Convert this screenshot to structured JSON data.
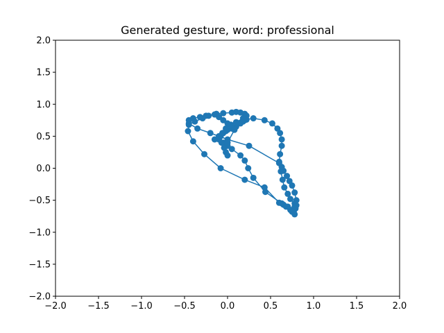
{
  "chart_data": {
    "type": "line",
    "title": "Generated gesture, word: professional",
    "xlabel": "",
    "ylabel": "",
    "xlim": [
      -2.0,
      2.0
    ],
    "ylim": [
      -2.0,
      2.0
    ],
    "xticks": [
      "−2.0",
      "−1.5",
      "−1.0",
      "−0.5",
      "0.0",
      "0.5",
      "1.0",
      "1.5",
      "2.0"
    ],
    "yticks": [
      "−2.0",
      "−1.5",
      "−1.0",
      "−0.5",
      "0.0",
      "0.5",
      "1.0",
      "1.5",
      "2.0"
    ],
    "grid": false,
    "color": "#1f77b4",
    "marker": "o",
    "series": [
      {
        "x": [
          0.0,
          -0.05,
          -0.1,
          -0.08,
          -0.05,
          -0.02,
          0.0,
          0.05,
          0.1,
          0.15,
          0.18,
          0.2,
          0.22,
          0.3,
          0.43,
          0.52,
          0.58,
          0.61,
          0.63,
          0.63,
          0.61,
          0.6,
          0.62,
          0.64,
          0.66,
          0.7,
          0.73,
          0.78,
          0.8,
          0.79,
          0.77,
          0.73,
          0.7,
          0.65,
          0.6,
          0.43,
          0.2,
          -0.08,
          -0.27,
          -0.4,
          -0.46,
          -0.45,
          -0.38,
          -0.29,
          -0.22,
          -0.13,
          -0.05,
          0.05,
          0.1,
          0.15,
          0.2,
          0.22,
          0.18,
          0.1,
          0.04,
          -0.02,
          -0.06,
          -0.1,
          -0.15,
          -0.07,
          0.05,
          0.15,
          0.2,
          0.24,
          0.3,
          0.44,
          0.63,
          0.68,
          0.74,
          0.78,
          0.75,
          0.78,
          0.8,
          0.78,
          0.75,
          0.72,
          0.69,
          0.65,
          0.63,
          0.6,
          0.25,
          0.0,
          -0.1,
          -0.2,
          -0.35,
          -0.45,
          -0.45,
          -0.4,
          -0.32,
          -0.25,
          -0.15,
          -0.1,
          -0.05,
          0.0,
          0.05,
          0.08,
          0.0,
          -0.04,
          -0.02,
          0.0
        ],
        "y": [
          0.35,
          0.4,
          0.45,
          0.5,
          0.55,
          0.58,
          0.6,
          0.62,
          0.65,
          0.7,
          0.73,
          0.75,
          0.76,
          0.78,
          0.75,
          0.7,
          0.62,
          0.55,
          0.45,
          0.35,
          0.22,
          0.1,
          -0.05,
          -0.18,
          -0.3,
          -0.4,
          -0.48,
          -0.55,
          -0.58,
          -0.63,
          -0.67,
          -0.65,
          -0.6,
          -0.57,
          -0.54,
          -0.3,
          -0.18,
          0.0,
          0.22,
          0.42,
          0.58,
          0.68,
          0.73,
          0.78,
          0.82,
          0.85,
          0.86,
          0.87,
          0.88,
          0.87,
          0.85,
          0.82,
          0.78,
          0.72,
          0.68,
          0.62,
          0.55,
          0.5,
          0.45,
          0.4,
          0.3,
          0.2,
          0.12,
          0.0,
          -0.15,
          -0.37,
          -0.55,
          -0.6,
          -0.66,
          -0.72,
          -0.68,
          -0.6,
          -0.5,
          -0.38,
          -0.27,
          -0.2,
          -0.12,
          -0.04,
          0.02,
          0.08,
          0.35,
          0.45,
          0.5,
          0.55,
          0.62,
          0.7,
          0.75,
          0.78,
          0.8,
          0.82,
          0.84,
          0.8,
          0.75,
          0.7,
          0.65,
          0.6,
          0.4,
          0.32,
          0.25,
          0.2
        ]
      }
    ]
  }
}
